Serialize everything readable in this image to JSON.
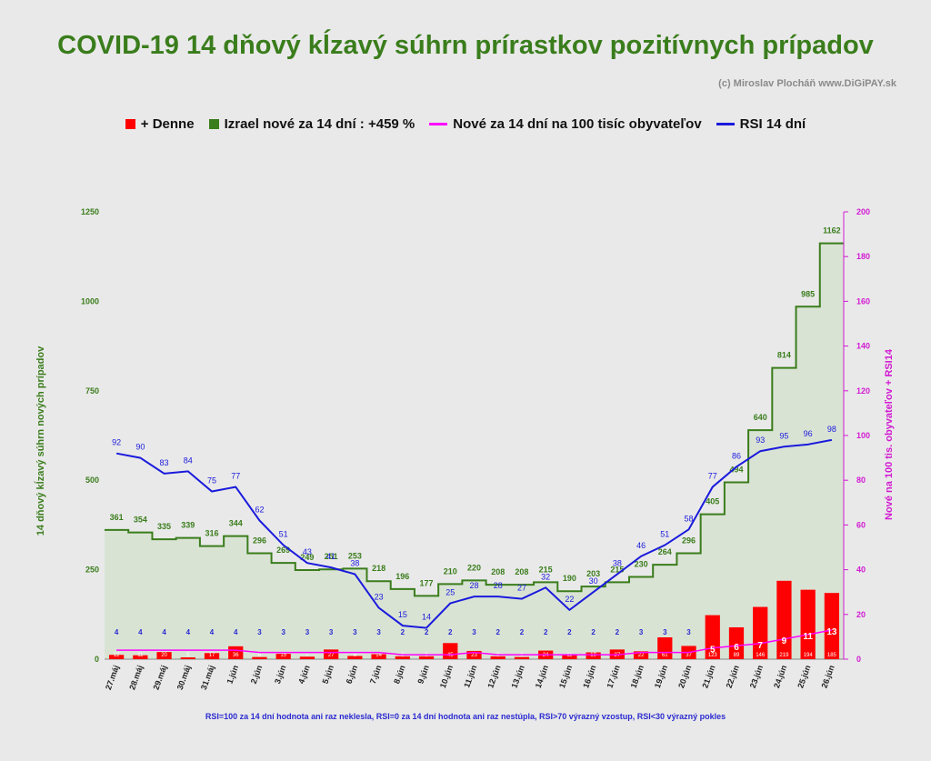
{
  "title": "COVID-19 14 dňový kĺzavý súhrn prírastkov pozitívnych prípadov",
  "copyright": "(c) Miroslav Plocháň  www.DiGiPAY.sk",
  "footnote": "RSI=100 za 14 dní hodnota ani raz neklesla, RSI=0 za 14 dní hodnota ani raz nestúpla, RSI>70 výrazný  vzostup, RSI<30 výrazný pokles",
  "colors": {
    "daily": "#ff0000",
    "total14": "#3a7d1c",
    "per100k": "#ff00ff",
    "rsi": "#1a1adc",
    "area_fill": "#d9e3d4"
  },
  "chart_data": {
    "type": "bar",
    "categories": [
      "27.máj",
      "28.máj",
      "29.máj",
      "30.máj",
      "31.máj",
      "1.jún",
      "2.jún",
      "3.jún",
      "4.jún",
      "5.jún",
      "6.jún",
      "7.jún",
      "8.jún",
      "9.jún",
      "10.jún",
      "11.jún",
      "12.jún",
      "13.jún",
      "14.jún",
      "15.jún",
      "16.jún",
      "17.jún",
      "18.jún",
      "19.jún",
      "20.jún",
      "21.jún",
      "22.jún",
      "23.jún",
      "24.jún",
      "25.jún",
      "26.jún"
    ],
    "ylabel": "14 dňový kĺzavý  súhrn nových prípadov",
    "y2label": "Nové na 100 tis. obyvateľov + RSI14",
    "ylim": [
      0,
      1250
    ],
    "yticks": [
      0,
      250,
      500,
      750,
      1000,
      1250
    ],
    "y2lim": [
      0,
      200
    ],
    "y2ticks": [
      0,
      20,
      40,
      60,
      80,
      100,
      120,
      140,
      160,
      180,
      200
    ],
    "series": [
      {
        "name": "+ Denne",
        "type": "bar",
        "axis": "left",
        "values": [
          12,
          11,
          20,
          5,
          17,
          36,
          6,
          15,
          7,
          27,
          9,
          14,
          8,
          8,
          45,
          23,
          8,
          6,
          24,
          11,
          19,
          27,
          22,
          61,
          37,
          123,
          89,
          146,
          219,
          194,
          185
        ]
      },
      {
        "name": "Izrael nové za 14 dní : +459 %",
        "type": "step-area",
        "axis": "left",
        "values": [
          361,
          354,
          335,
          339,
          316,
          344,
          296,
          269,
          249,
          251,
          253,
          218,
          196,
          177,
          210,
          220,
          208,
          208,
          215,
          190,
          203,
          215,
          230,
          264,
          296,
          405,
          494,
          640,
          814,
          985,
          1162
        ]
      },
      {
        "name": "Nové za 14 dní na 100 tisíc obyvateľov",
        "type": "line",
        "axis": "right",
        "values": [
          4,
          4,
          4,
          4,
          4,
          4,
          3,
          3,
          3,
          3,
          3,
          3,
          2,
          2,
          2,
          3,
          2,
          2,
          2,
          2,
          2,
          2,
          3,
          3,
          3,
          5,
          6,
          7,
          9,
          11,
          13
        ]
      },
      {
        "name": "RSI 14 dní",
        "type": "line",
        "axis": "right",
        "values": [
          92,
          90,
          83,
          84,
          75,
          77,
          62,
          51,
          43,
          41,
          38,
          23,
          15,
          14,
          25,
          28,
          28,
          27,
          32,
          22,
          30,
          38,
          46,
          51,
          58,
          77,
          86,
          93,
          95,
          96,
          98
        ]
      }
    ]
  }
}
